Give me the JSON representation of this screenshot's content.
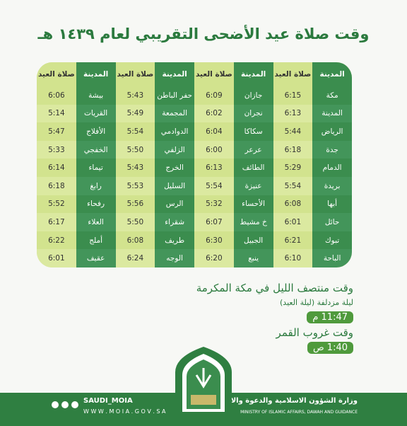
{
  "header": {
    "title": "وقت صلاة عيد الأضحى التقريبي لعام ١٤٣٩ هـ"
  },
  "table": {
    "header": [
      "المدينة",
      "صلاة العيد",
      "المدينة",
      "صلاة العيد",
      "المدينة",
      "صلاة العيد",
      "المدينة",
      "صلاة العيد"
    ],
    "rows": [
      [
        "مكة",
        "6:15",
        "جازان",
        "6:09",
        "حفر الباطن",
        "5:43",
        "بيشة",
        "6:06"
      ],
      [
        "المدينة",
        "6:13",
        "نجران",
        "6:02",
        "المجمعة",
        "5:49",
        "القريات",
        "5:14"
      ],
      [
        "الرياض",
        "5:44",
        "سكاكا",
        "6:04",
        "الدوادمي",
        "5:54",
        "الأفلاج",
        "5:47"
      ],
      [
        "جدة",
        "6:18",
        "عرعر",
        "6:00",
        "الزلفي",
        "5:50",
        "الخفجي",
        "5:33"
      ],
      [
        "الدمام",
        "5:29",
        "الطائف",
        "6:13",
        "الخرج",
        "5:43",
        "تيماء",
        "6:14"
      ],
      [
        "بريدة",
        "5:54",
        "عنيزة",
        "5:54",
        "السليل",
        "5:53",
        "رابغ",
        "6:18"
      ],
      [
        "أبها",
        "6:08",
        "الأحساء",
        "5:32",
        "الرس",
        "5:56",
        "رفحاء",
        "5:52"
      ],
      [
        "حائل",
        "6:01",
        "خ مشيط",
        "6:07",
        "شقراء",
        "5:50",
        "العلاء",
        "6:17"
      ],
      [
        "تبوك",
        "6:21",
        "الجبيل",
        "6:30",
        "طريف",
        "6:08",
        "أملج",
        "6:22"
      ],
      [
        "الباحة",
        "6:10",
        "ينبع",
        "6:20",
        "الوجه",
        "6:24",
        "عقيف",
        "6:01"
      ]
    ]
  },
  "notes": {
    "midnight_title": "وقت منتصف الليل في مكة المكرمة",
    "midnight_subtitle": "ليلة مزدلفة (ليلة العيد)",
    "midnight_time": "11:47 م",
    "moonset_title": "وقت غروب القمر",
    "moonset_time": "1:40 ص"
  },
  "footer": {
    "handle": "SAUDI_MOIA",
    "website": "W W W . M O I A . G O V . S A",
    "ministry_ar": "وزارة الشؤون الاسلامية والدعوة والارشاد",
    "ministry_en": "MINISTRY OF ISLAMIC AFFAIRS, DAWAH AND GUIDANCE"
  }
}
